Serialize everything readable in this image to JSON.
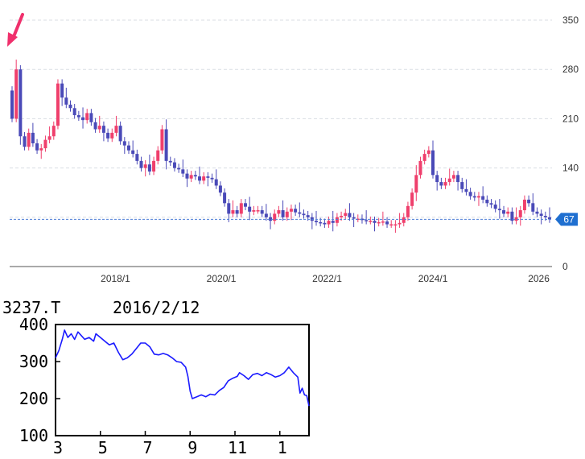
{
  "colors": {
    "up": "#ef3f6c",
    "down": "#4a4ab8",
    "grid": "#d9dde3",
    "current": "#4e7fd6",
    "mini_line": "#1a1aff",
    "arrow": "#f0306c"
  },
  "chart_data": [
    {
      "type": "candlestick",
      "title": "",
      "x_range": [
        2016.0,
        2026.25
      ],
      "ylim": [
        0,
        350
      ],
      "yticks": [
        0,
        70,
        140,
        210,
        280,
        350
      ],
      "xticks": [
        {
          "x": 2018.0,
          "label": "2018/1"
        },
        {
          "x": 2020.0,
          "label": "2020/1"
        },
        {
          "x": 2022.0,
          "label": "2022/1"
        },
        {
          "x": 2024.0,
          "label": "2024/1"
        },
        {
          "x": 2026.0,
          "label": "2026"
        }
      ],
      "current_value": 67,
      "current_label": "67",
      "grid": true,
      "series_close": [
        210,
        280,
        185,
        170,
        190,
        175,
        165,
        168,
        180,
        185,
        200,
        260,
        240,
        230,
        225,
        215,
        212,
        208,
        218,
        205,
        195,
        200,
        190,
        182,
        190,
        200,
        178,
        172,
        165,
        160,
        150,
        140,
        145,
        135,
        150,
        165,
        195,
        150,
        148,
        140,
        138,
        132,
        125,
        130,
        128,
        122,
        128,
        126,
        124,
        115,
        105,
        90,
        75,
        80,
        75,
        90,
        85,
        78,
        80,
        80,
        75,
        70,
        65,
        75,
        80,
        70,
        78,
        82,
        77,
        75,
        73,
        70,
        65,
        63,
        62,
        60,
        65,
        62,
        70,
        72,
        76,
        70,
        68,
        68,
        66,
        65,
        65,
        62,
        63,
        64,
        60,
        60,
        60,
        62,
        70,
        86,
        105,
        130,
        150,
        160,
        165,
        130,
        120,
        115,
        120,
        125,
        130,
        120,
        110,
        106,
        100,
        98,
        100,
        95,
        90,
        88,
        82,
        80,
        75,
        78,
        65,
        70,
        80,
        95,
        90,
        78,
        75,
        72,
        70,
        67
      ]
    },
    {
      "type": "line",
      "title": "3237.T",
      "date_label": "2016/2/12",
      "ylim": [
        100,
        400
      ],
      "yticks": [
        100,
        200,
        300,
        400
      ],
      "xtick_labels": [
        "3",
        "5",
        "7",
        "9",
        "11",
        "1"
      ],
      "x_range": [
        0,
        11.3
      ],
      "xticks_x": [
        0,
        2,
        4,
        6,
        8,
        10
      ],
      "points": [
        [
          0,
          310
        ],
        [
          0.15,
          330
        ],
        [
          0.3,
          360
        ],
        [
          0.4,
          385
        ],
        [
          0.55,
          365
        ],
        [
          0.7,
          375
        ],
        [
          0.85,
          360
        ],
        [
          1.0,
          380
        ],
        [
          1.15,
          370
        ],
        [
          1.3,
          360
        ],
        [
          1.5,
          365
        ],
        [
          1.7,
          355
        ],
        [
          1.8,
          375
        ],
        [
          2.0,
          365
        ],
        [
          2.2,
          355
        ],
        [
          2.4,
          345
        ],
        [
          2.6,
          350
        ],
        [
          2.8,
          325
        ],
        [
          3.0,
          305
        ],
        [
          3.2,
          310
        ],
        [
          3.4,
          320
        ],
        [
          3.6,
          335
        ],
        [
          3.8,
          350
        ],
        [
          4.0,
          350
        ],
        [
          4.2,
          340
        ],
        [
          4.4,
          320
        ],
        [
          4.6,
          318
        ],
        [
          4.8,
          322
        ],
        [
          5.0,
          318
        ],
        [
          5.2,
          310
        ],
        [
          5.4,
          300
        ],
        [
          5.6,
          298
        ],
        [
          5.8,
          285
        ],
        [
          5.9,
          260
        ],
        [
          6.0,
          220
        ],
        [
          6.1,
          200
        ],
        [
          6.3,
          205
        ],
        [
          6.5,
          210
        ],
        [
          6.7,
          205
        ],
        [
          6.9,
          212
        ],
        [
          7.1,
          210
        ],
        [
          7.3,
          222
        ],
        [
          7.5,
          230
        ],
        [
          7.7,
          248
        ],
        [
          7.9,
          255
        ],
        [
          8.1,
          260
        ],
        [
          8.2,
          270
        ],
        [
          8.4,
          262
        ],
        [
          8.6,
          252
        ],
        [
          8.8,
          265
        ],
        [
          9.0,
          268
        ],
        [
          9.2,
          262
        ],
        [
          9.4,
          270
        ],
        [
          9.6,
          265
        ],
        [
          9.8,
          258
        ],
        [
          10.0,
          262
        ],
        [
          10.2,
          270
        ],
        [
          10.4,
          285
        ],
        [
          10.6,
          270
        ],
        [
          10.8,
          258
        ],
        [
          10.9,
          215
        ],
        [
          11.0,
          228
        ],
        [
          11.1,
          210
        ],
        [
          11.2,
          208
        ],
        [
          11.3,
          180
        ]
      ]
    }
  ]
}
